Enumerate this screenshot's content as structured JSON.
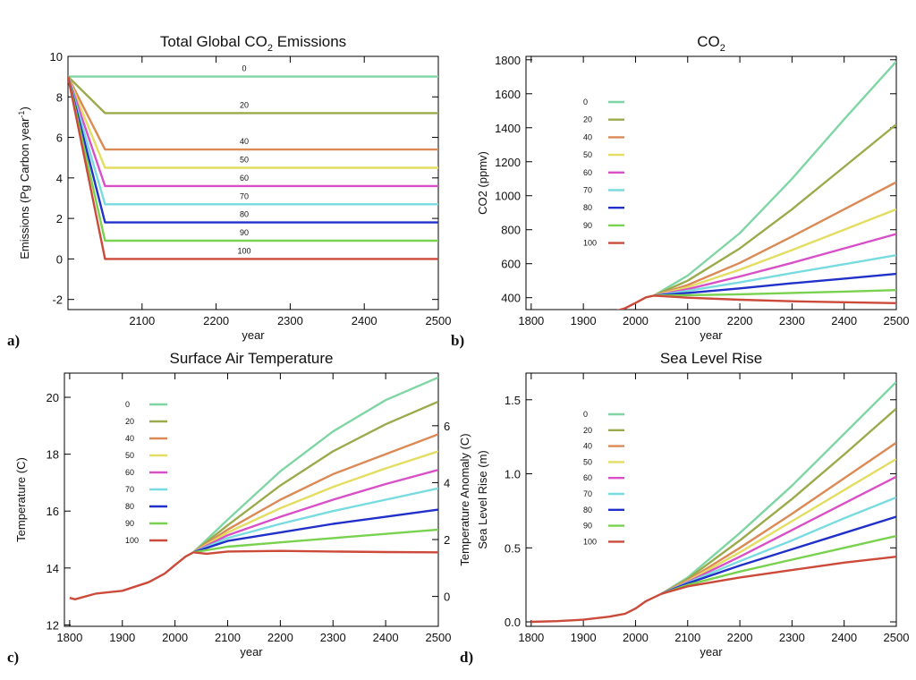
{
  "chart_data": [
    {
      "panel": "a)",
      "type": "line",
      "title": "Total Global CO2 Emissions",
      "title_sub": "2",
      "xlabel": "year",
      "ylabel": "Emissions (Pg Carbon year-1)",
      "ylabel_sup": "-1",
      "xlim": [
        2000,
        2500
      ],
      "ylim": [
        -2.5,
        10
      ],
      "xticks": [
        2100,
        2200,
        2300,
        2400,
        2500
      ],
      "yticks": [
        -2,
        0,
        2,
        4,
        6,
        8,
        10
      ],
      "grid": false,
      "legend": "inline",
      "series": [
        {
          "name": "0",
          "color": "#7fd6a4",
          "x": [
            2000,
            2500
          ],
          "y": [
            9,
            9
          ]
        },
        {
          "name": "20",
          "color": "#9aab4c",
          "x": [
            2000,
            2050,
            2500
          ],
          "y": [
            9,
            7.2,
            7.2
          ]
        },
        {
          "name": "40",
          "color": "#db8a55",
          "x": [
            2000,
            2050,
            2500
          ],
          "y": [
            9,
            5.4,
            5.4
          ]
        },
        {
          "name": "50",
          "color": "#e3dd62",
          "x": [
            2000,
            2050,
            2500
          ],
          "y": [
            9,
            4.5,
            4.5
          ]
        },
        {
          "name": "60",
          "color": "#d94fc7",
          "x": [
            2000,
            2050,
            2500
          ],
          "y": [
            9,
            3.6,
            3.6
          ]
        },
        {
          "name": "70",
          "color": "#78dbe0",
          "x": [
            2000,
            2050,
            2500
          ],
          "y": [
            9,
            2.7,
            2.7
          ]
        },
        {
          "name": "80",
          "color": "#2030c8",
          "x": [
            2000,
            2050,
            2500
          ],
          "y": [
            9,
            1.8,
            1.8
          ]
        },
        {
          "name": "90",
          "color": "#79d24f",
          "x": [
            2000,
            2050,
            2500
          ],
          "y": [
            9,
            0.9,
            0.9
          ]
        },
        {
          "name": "100",
          "color": "#cc4a3a",
          "x": [
            2000,
            2050,
            2500
          ],
          "y": [
            9,
            0,
            0
          ]
        }
      ]
    },
    {
      "panel": "b)",
      "type": "line",
      "title": "CO2",
      "title_sub": "2",
      "xlabel": "year",
      "ylabel": "CO2 (ppmv)",
      "xlim": [
        1790,
        2500
      ],
      "ylim": [
        330,
        1820
      ],
      "xticks": [
        1800,
        1900,
        2000,
        2100,
        2200,
        2300,
        2400,
        2500
      ],
      "yticks": [
        400,
        600,
        800,
        1000,
        1200,
        1400,
        1600,
        1800
      ],
      "grid": false,
      "legend": "top-left",
      "history": {
        "x": [
          1800,
          1850,
          1900,
          1950,
          1980,
          2000,
          2020,
          2035
        ],
        "y": [
          280,
          283,
          294,
          311,
          338,
          369,
          402,
          412
        ]
      },
      "series": [
        {
          "name": "0",
          "color": "#7fd6a4",
          "x": [
            2035,
            2100,
            2200,
            2300,
            2400,
            2500
          ],
          "y": [
            412,
            530,
            780,
            1100,
            1450,
            1790
          ]
        },
        {
          "name": "20",
          "color": "#9aab4c",
          "x": [
            2035,
            2100,
            2200,
            2300,
            2400,
            2500
          ],
          "y": [
            412,
            500,
            690,
            920,
            1170,
            1420
          ]
        },
        {
          "name": "40",
          "color": "#db8a55",
          "x": [
            2035,
            2100,
            2200,
            2300,
            2400,
            2500
          ],
          "y": [
            412,
            475,
            605,
            760,
            920,
            1080
          ]
        },
        {
          "name": "50",
          "color": "#e3dd62",
          "x": [
            2035,
            2100,
            2200,
            2300,
            2400,
            2500
          ],
          "y": [
            412,
            462,
            565,
            680,
            800,
            920
          ]
        },
        {
          "name": "60",
          "color": "#d94fc7",
          "x": [
            2035,
            2100,
            2200,
            2300,
            2400,
            2500
          ],
          "y": [
            412,
            450,
            525,
            605,
            690,
            775
          ]
        },
        {
          "name": "70",
          "color": "#78dbe0",
          "x": [
            2035,
            2100,
            2200,
            2300,
            2400,
            2500
          ],
          "y": [
            412,
            440,
            490,
            545,
            597,
            650
          ]
        },
        {
          "name": "80",
          "color": "#2030c8",
          "x": [
            2035,
            2100,
            2200,
            2300,
            2400,
            2500
          ],
          "y": [
            412,
            428,
            455,
            485,
            512,
            540
          ]
        },
        {
          "name": "90",
          "color": "#79d24f",
          "x": [
            2035,
            2100,
            2200,
            2300,
            2400,
            2500
          ],
          "y": [
            412,
            415,
            420,
            428,
            436,
            445
          ]
        },
        {
          "name": "100",
          "color": "#cc4a3a",
          "x": [
            2035,
            2100,
            2200,
            2300,
            2400,
            2500
          ],
          "y": [
            412,
            400,
            388,
            379,
            373,
            368
          ]
        }
      ]
    },
    {
      "panel": "c)",
      "type": "line",
      "title": "Surface Air Temperature",
      "xlabel": "year",
      "ylabel": "Temperature (C)",
      "ylabel2": "Temperature Anomaly (C)",
      "xlim": [
        1790,
        2500
      ],
      "ylim": [
        11.95,
        20.85
      ],
      "ylim2": [
        -1.05,
        7.85
      ],
      "xticks": [
        1800,
        1900,
        2000,
        2100,
        2200,
        2300,
        2400,
        2500
      ],
      "yticks": [
        12,
        14,
        16,
        18,
        20
      ],
      "yticks2": [
        0,
        2,
        4,
        6
      ],
      "grid": false,
      "legend": "top-left",
      "history": {
        "x": [
          1800,
          1810,
          1850,
          1900,
          1950,
          1980,
          2000,
          2020,
          2035
        ],
        "y": [
          12.95,
          12.9,
          13.1,
          13.2,
          13.5,
          13.8,
          14.1,
          14.4,
          14.55
        ]
      },
      "series": [
        {
          "name": "0",
          "color": "#7fd6a4",
          "x": [
            2035,
            2100,
            2200,
            2300,
            2400,
            2500
          ],
          "y": [
            14.55,
            15.7,
            17.4,
            18.8,
            19.9,
            20.7
          ]
        },
        {
          "name": "20",
          "color": "#9aab4c",
          "x": [
            2035,
            2100,
            2200,
            2300,
            2400,
            2500
          ],
          "y": [
            14.55,
            15.5,
            16.9,
            18.1,
            19.05,
            19.85
          ]
        },
        {
          "name": "40",
          "color": "#db8a55",
          "x": [
            2035,
            2100,
            2200,
            2300,
            2400,
            2500
          ],
          "y": [
            14.55,
            15.35,
            16.4,
            17.3,
            18.0,
            18.7
          ]
        },
        {
          "name": "50",
          "color": "#e3dd62",
          "x": [
            2035,
            2100,
            2200,
            2300,
            2400,
            2500
          ],
          "y": [
            14.55,
            15.25,
            16.1,
            16.85,
            17.5,
            18.1
          ]
        },
        {
          "name": "60",
          "color": "#d94fc7",
          "x": [
            2035,
            2100,
            2200,
            2300,
            2400,
            2500
          ],
          "y": [
            14.55,
            15.15,
            15.8,
            16.4,
            16.95,
            17.45
          ]
        },
        {
          "name": "70",
          "color": "#78dbe0",
          "x": [
            2035,
            2100,
            2200,
            2300,
            2400,
            2500
          ],
          "y": [
            14.55,
            15.05,
            15.55,
            16.0,
            16.4,
            16.8
          ]
        },
        {
          "name": "80",
          "color": "#2030c8",
          "x": [
            2035,
            2100,
            2200,
            2300,
            2400,
            2500
          ],
          "y": [
            14.55,
            14.95,
            15.25,
            15.55,
            15.8,
            16.05
          ]
        },
        {
          "name": "90",
          "color": "#79d24f",
          "x": [
            2035,
            2100,
            2200,
            2300,
            2400,
            2500
          ],
          "y": [
            14.55,
            14.75,
            14.9,
            15.05,
            15.2,
            15.35
          ]
        },
        {
          "name": "100",
          "color": "#cc4a3a",
          "x": [
            2035,
            2060,
            2100,
            2200,
            2300,
            2400,
            2500
          ],
          "y": [
            14.55,
            14.5,
            14.58,
            14.6,
            14.58,
            14.56,
            14.55
          ]
        }
      ]
    },
    {
      "panel": "d)",
      "type": "line",
      "title": "Sea Level Rise",
      "xlabel": "year",
      "ylabel": "Sea Level Rise (m)",
      "xlim": [
        1790,
        2500
      ],
      "ylim": [
        -0.03,
        1.68
      ],
      "xticks": [
        1800,
        1900,
        2000,
        2100,
        2200,
        2300,
        2400,
        2500
      ],
      "yticks": [
        0.0,
        0.5,
        1.0,
        1.5
      ],
      "yticklabels": [
        "0.0",
        "0.5",
        "1.0",
        "1.5"
      ],
      "grid": false,
      "legend": "top-left",
      "history": {
        "x": [
          1800,
          1850,
          1900,
          1950,
          1980,
          2000,
          2020,
          2050
        ],
        "y": [
          0.0,
          0.005,
          0.015,
          0.035,
          0.055,
          0.09,
          0.14,
          0.19
        ]
      },
      "series": [
        {
          "name": "0",
          "color": "#7fd6a4",
          "x": [
            2050,
            2100,
            2200,
            2300,
            2400,
            2500
          ],
          "y": [
            0.19,
            0.3,
            0.6,
            0.92,
            1.27,
            1.62
          ]
        },
        {
          "name": "20",
          "color": "#9aab4c",
          "x": [
            2050,
            2100,
            2200,
            2300,
            2400,
            2500
          ],
          "y": [
            0.19,
            0.29,
            0.55,
            0.83,
            1.13,
            1.44
          ]
        },
        {
          "name": "40",
          "color": "#db8a55",
          "x": [
            2050,
            2100,
            2200,
            2300,
            2400,
            2500
          ],
          "y": [
            0.19,
            0.28,
            0.5,
            0.73,
            0.97,
            1.21
          ]
        },
        {
          "name": "50",
          "color": "#e3dd62",
          "x": [
            2050,
            2100,
            2200,
            2300,
            2400,
            2500
          ],
          "y": [
            0.19,
            0.275,
            0.47,
            0.68,
            0.89,
            1.1
          ]
        },
        {
          "name": "60",
          "color": "#d94fc7",
          "x": [
            2050,
            2100,
            2200,
            2300,
            2400,
            2500
          ],
          "y": [
            0.19,
            0.27,
            0.44,
            0.62,
            0.8,
            0.98
          ]
        },
        {
          "name": "70",
          "color": "#78dbe0",
          "x": [
            2050,
            2100,
            2200,
            2300,
            2400,
            2500
          ],
          "y": [
            0.19,
            0.265,
            0.41,
            0.55,
            0.7,
            0.84
          ]
        },
        {
          "name": "80",
          "color": "#2030c8",
          "x": [
            2050,
            2100,
            2200,
            2300,
            2400,
            2500
          ],
          "y": [
            0.19,
            0.26,
            0.38,
            0.49,
            0.6,
            0.71
          ]
        },
        {
          "name": "90",
          "color": "#79d24f",
          "x": [
            2050,
            2100,
            2200,
            2300,
            2400,
            2500
          ],
          "y": [
            0.19,
            0.25,
            0.34,
            0.42,
            0.5,
            0.58
          ]
        },
        {
          "name": "100",
          "color": "#cc4a3a",
          "x": [
            2050,
            2100,
            2200,
            2300,
            2400,
            2500
          ],
          "y": [
            0.19,
            0.24,
            0.3,
            0.35,
            0.4,
            0.44
          ]
        }
      ]
    }
  ]
}
